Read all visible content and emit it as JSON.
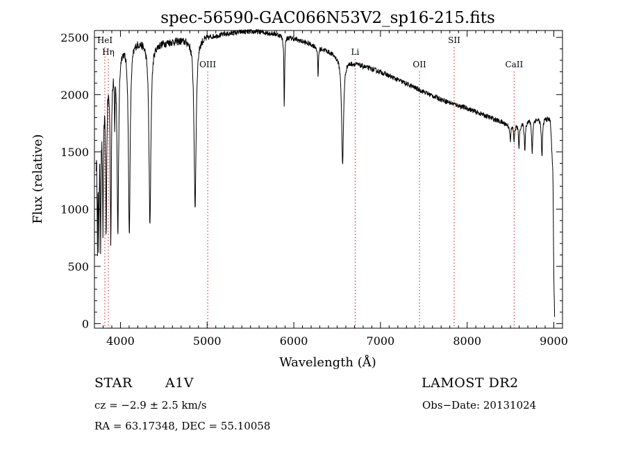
{
  "chart_data": {
    "type": "line",
    "title": "spec-56590-GAC066N53V2_sp16-215.fits",
    "xlabel": "Wavelength (Å)",
    "ylabel": "Flux (relative)",
    "xlim": [
      3700,
      9100
    ],
    "ylim": [
      -40,
      2560
    ],
    "xticks": [
      4000,
      5000,
      6000,
      7000,
      8000,
      9000
    ],
    "yticks": [
      0,
      500,
      1000,
      1500,
      2000,
      2500
    ],
    "xtick_labels": [
      "4000",
      "5000",
      "6000",
      "7000",
      "8000",
      "9000"
    ],
    "ytick_labels": [
      "0",
      "500",
      "1000",
      "1500",
      "2000",
      "2500"
    ],
    "grid": false,
    "continuum": [
      [
        3720,
        1500
      ],
      [
        3800,
        2000
      ],
      [
        3900,
        2330
      ],
      [
        4000,
        2440
      ],
      [
        4100,
        2470
      ],
      [
        4200,
        2480
      ],
      [
        4400,
        2450
      ],
      [
        4600,
        2470
      ],
      [
        4800,
        2490
      ],
      [
        5000,
        2510
      ],
      [
        5200,
        2530
      ],
      [
        5400,
        2550
      ],
      [
        5600,
        2550
      ],
      [
        5800,
        2530
      ],
      [
        6000,
        2490
      ],
      [
        6200,
        2440
      ],
      [
        6400,
        2380
      ],
      [
        6600,
        2300
      ],
      [
        6800,
        2250
      ],
      [
        7000,
        2200
      ],
      [
        7200,
        2130
      ],
      [
        7400,
        2060
      ],
      [
        7600,
        1990
      ],
      [
        7800,
        1930
      ],
      [
        8000,
        1880
      ],
      [
        8200,
        1820
      ],
      [
        8400,
        1760
      ],
      [
        8500,
        1730
      ],
      [
        8600,
        1740
      ],
      [
        8700,
        1780
      ],
      [
        8800,
        1790
      ],
      [
        8900,
        1800
      ],
      [
        8960,
        1780
      ],
      [
        8990,
        1300
      ],
      [
        9000,
        400
      ],
      [
        9010,
        30
      ]
    ],
    "absorption_lines": [
      {
        "center": 3735,
        "depth": 800,
        "width": 4
      },
      {
        "center": 3750,
        "depth": 900,
        "width": 5
      },
      {
        "center": 3771,
        "depth": 1000,
        "width": 5
      },
      {
        "center": 3798,
        "depth": 1100,
        "width": 6
      },
      {
        "center": 3835,
        "depth": 1250,
        "width": 7
      },
      {
        "center": 3889,
        "depth": 1500,
        "width": 8
      },
      {
        "center": 3934,
        "depth": 500,
        "width": 4
      },
      {
        "center": 3970,
        "depth": 1650,
        "width": 10
      },
      {
        "center": 4102,
        "depth": 1680,
        "width": 12
      },
      {
        "center": 4340,
        "depth": 1600,
        "width": 13
      },
      {
        "center": 4861,
        "depth": 1480,
        "width": 14
      },
      {
        "center": 5890,
        "depth": 620,
        "width": 5
      },
      {
        "center": 6280,
        "depth": 260,
        "width": 5
      },
      {
        "center": 6563,
        "depth": 930,
        "width": 13
      },
      {
        "center": 8498,
        "depth": 140,
        "width": 6
      },
      {
        "center": 8542,
        "depth": 150,
        "width": 6
      },
      {
        "center": 8598,
        "depth": 190,
        "width": 7
      },
      {
        "center": 8665,
        "depth": 250,
        "width": 7
      },
      {
        "center": 8750,
        "depth": 300,
        "width": 7
      },
      {
        "center": 8863,
        "depth": 340,
        "width": 8
      }
    ],
    "noise_amplitude": 22,
    "line_markers": [
      {
        "label": "HeI",
        "x": 3820,
        "label_row": 0
      },
      {
        "label": "Hη",
        "x": 3860,
        "label_row": 1
      },
      {
        "label": "OIII",
        "x": 5007,
        "label_row": 2
      },
      {
        "label": "Li",
        "x": 6708,
        "label_row": 1
      },
      {
        "label": "OII",
        "x": 7450,
        "label_row": 2
      },
      {
        "label": "SII",
        "x": 7850,
        "label_row": 0
      },
      {
        "label": "CaII",
        "x": 8542,
        "label_row": 2
      }
    ],
    "marker_color": "#d01010"
  },
  "info": {
    "object_class": "STAR",
    "subclass": "A1V",
    "survey": "LAMOST DR2",
    "cz": "cz = −2.9 ± 2.5 km/s",
    "obs_date": "Obs−Date: 20131024",
    "coords": "RA =  63.17348, DEC =  55.10058"
  }
}
